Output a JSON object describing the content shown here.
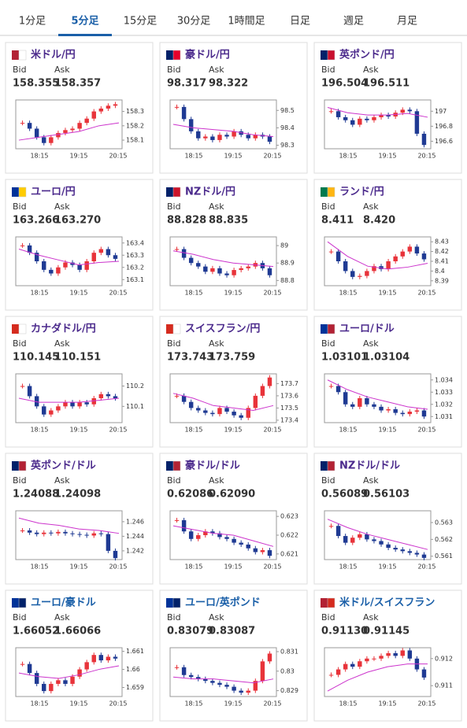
{
  "tabs": {
    "items": [
      "1分足",
      "5分足",
      "15分足",
      "30分足",
      "1時間足",
      "日足",
      "週足",
      "月足"
    ],
    "active": 1
  },
  "labels": {
    "bid": "Bid",
    "ask": "Ask"
  },
  "time_labels": [
    "18:15",
    "19:15",
    "20:15"
  ],
  "cards": [
    {
      "title": "米ドル/円",
      "bid": "158.355",
      "ask": "158.357",
      "chart": {
        "type": "candlestick",
        "ylim": [
          158.04,
          158.38
        ],
        "yticks": [
          158.1,
          158.2,
          158.3
        ],
        "values": [
          158.22,
          158.18,
          158.12,
          158.08,
          158.12,
          158.15,
          158.17,
          158.18,
          158.22,
          158.25,
          158.3,
          158.32,
          158.34,
          158.35
        ],
        "ma": [
          158.1,
          158.12,
          158.14,
          158.16,
          158.2,
          158.22
        ]
      }
    },
    {
      "title": "豪ドル/円",
      "bid": "98.317",
      "ask": "98.322",
      "chart": {
        "type": "candlestick",
        "ylim": [
          98.28,
          98.56
        ],
        "yticks": [
          98.3,
          98.4,
          98.5
        ],
        "values": [
          98.52,
          98.45,
          98.38,
          98.34,
          98.35,
          98.33,
          98.36,
          98.35,
          98.38,
          98.36,
          98.34,
          98.36,
          98.35,
          98.32
        ],
        "ma": [
          98.42,
          98.4,
          98.39,
          98.38,
          98.36,
          98.35
        ]
      }
    },
    {
      "title": "英ポンド/円",
      "bid": "196.504",
      "ask": "196.511",
      "chart": {
        "type": "candlestick",
        "ylim": [
          196.5,
          197.15
        ],
        "yticks": [
          196.6,
          196.8,
          197
        ],
        "values": [
          197.0,
          196.92,
          196.88,
          196.82,
          196.9,
          196.88,
          196.92,
          196.95,
          196.93,
          196.98,
          197.02,
          197.0,
          196.7,
          196.55
        ],
        "ma": [
          197.05,
          196.98,
          196.95,
          196.95,
          196.97,
          196.92
        ]
      }
    },
    {
      "title": "ユーロ/円",
      "bid": "163.266",
      "ask": "163.270",
      "chart": {
        "type": "candlestick",
        "ylim": [
          163.05,
          163.45
        ],
        "yticks": [
          163.1,
          163.2,
          163.3,
          163.4
        ],
        "values": [
          163.38,
          163.32,
          163.25,
          163.18,
          163.15,
          163.2,
          163.24,
          163.22,
          163.18,
          163.25,
          163.32,
          163.35,
          163.3,
          163.27
        ],
        "ma": [
          163.35,
          163.3,
          163.26,
          163.22,
          163.24,
          163.25
        ]
      }
    },
    {
      "title": "NZドル/円",
      "bid": "88.828",
      "ask": "88.835",
      "chart": {
        "type": "candlestick",
        "ylim": [
          88.77,
          89.05
        ],
        "yticks": [
          88.8,
          88.9,
          89
        ],
        "values": [
          88.98,
          88.93,
          88.9,
          88.88,
          88.85,
          88.87,
          88.84,
          88.83,
          88.86,
          88.87,
          88.88,
          88.9,
          88.87,
          88.83
        ],
        "ma": [
          88.97,
          88.95,
          88.92,
          88.9,
          88.89,
          88.88
        ]
      }
    },
    {
      "title": "ランド/円",
      "bid": "8.411",
      "ask": "8.420",
      "chart": {
        "type": "candlestick",
        "ylim": [
          8.385,
          8.435
        ],
        "yticks": [
          8.39,
          8.4,
          8.41,
          8.42,
          8.43
        ],
        "values": [
          8.42,
          8.41,
          8.4,
          8.394,
          8.395,
          8.4,
          8.405,
          8.402,
          8.41,
          8.415,
          8.42,
          8.425,
          8.418,
          8.412
        ],
        "ma": [
          8.43,
          8.415,
          8.405,
          8.402,
          8.404,
          8.408
        ]
      }
    },
    {
      "title": "カナダドル/円",
      "bid": "110.145",
      "ask": "110.151",
      "chart": {
        "type": "candlestick",
        "ylim": [
          110.02,
          110.26
        ],
        "yticks": [
          110.1,
          110.2
        ],
        "values": [
          110.2,
          110.15,
          110.1,
          110.06,
          110.08,
          110.1,
          110.12,
          110.1,
          110.12,
          110.11,
          110.14,
          110.16,
          110.15,
          110.14
        ],
        "ma": [
          110.14,
          110.12,
          110.12,
          110.12,
          110.13,
          110.14
        ]
      }
    },
    {
      "title": "スイスフラン/円",
      "bid": "173.743",
      "ask": "173.759",
      "chart": {
        "type": "candlestick",
        "ylim": [
          173.38,
          173.78
        ],
        "yticks": [
          173.4,
          173.5,
          173.6,
          173.7
        ],
        "values": [
          173.6,
          173.55,
          173.5,
          173.48,
          173.46,
          173.45,
          173.5,
          173.47,
          173.44,
          173.42,
          173.5,
          173.6,
          173.68,
          173.75
        ],
        "ma": [
          173.62,
          173.58,
          173.52,
          173.5,
          173.48,
          173.52
        ]
      }
    },
    {
      "title": "ユーロ/ドル",
      "bid": "1.03101",
      "ask": "1.03104",
      "chart": {
        "type": "candlestick",
        "ylim": [
          1.0305,
          1.0345
        ],
        "yticks": [
          1.031,
          1.032,
          1.033,
          1.034
        ],
        "values": [
          1.0335,
          1.033,
          1.032,
          1.0318,
          1.0325,
          1.032,
          1.0318,
          1.0315,
          1.0316,
          1.0313,
          1.0312,
          1.0314,
          1.0315,
          1.031
        ],
        "ma": [
          1.034,
          1.0332,
          1.0326,
          1.0322,
          1.0318,
          1.0316
        ]
      }
    },
    {
      "title": "英ポンド/ドル",
      "bid": "1.24088",
      "ask": "1.24098",
      "chart": {
        "type": "candlestick",
        "ylim": [
          1.2408,
          1.2475
        ],
        "yticks": [
          1.242,
          1.244,
          1.246
        ],
        "values": [
          1.2448,
          1.2445,
          1.2443,
          1.2445,
          1.2444,
          1.2446,
          1.2444,
          1.2443,
          1.2442,
          1.2441,
          1.2444,
          1.2443,
          1.242,
          1.241
        ],
        "ma": [
          1.2465,
          1.2458,
          1.2455,
          1.245,
          1.2448,
          1.2444
        ]
      }
    },
    {
      "title": "豪ドル/ドル",
      "bid": "0.62086",
      "ask": "0.62090",
      "chart": {
        "type": "candlestick",
        "ylim": [
          0.6207,
          0.6233
        ],
        "yticks": [
          0.621,
          0.622,
          0.623
        ],
        "values": [
          0.6228,
          0.6222,
          0.6218,
          0.622,
          0.6222,
          0.6221,
          0.6219,
          0.6218,
          0.6216,
          0.6215,
          0.6213,
          0.6211,
          0.6212,
          0.6209
        ],
        "ma": [
          0.6225,
          0.6223,
          0.6221,
          0.622,
          0.6217,
          0.6214
        ]
      }
    },
    {
      "title": "NZドル/ドル",
      "bid": "0.56089",
      "ask": "0.56103",
      "chart": {
        "type": "candlestick",
        "ylim": [
          0.5608,
          0.5637
        ],
        "yticks": [
          0.561,
          0.562,
          0.563
        ],
        "values": [
          0.5628,
          0.5622,
          0.5618,
          0.5621,
          0.5623,
          0.562,
          0.5619,
          0.5617,
          0.5615,
          0.5614,
          0.5613,
          0.5612,
          0.5611,
          0.5609
        ],
        "ma": [
          0.5632,
          0.5627,
          0.5623,
          0.562,
          0.5617,
          0.5614
        ]
      }
    },
    {
      "title": "ユーロ/豪ドル",
      "bid": "1.66052",
      "ask": "1.66066",
      "chart": {
        "type": "candlestick",
        "ylim": [
          1.6585,
          1.6612
        ],
        "yticks": [
          1.659,
          1.66,
          1.661
        ],
        "values": [
          1.6603,
          1.6598,
          1.6592,
          1.6588,
          1.6592,
          1.6594,
          1.6592,
          1.6596,
          1.66,
          1.6604,
          1.6608,
          1.6605,
          1.6607,
          1.6606
        ],
        "ma": [
          1.6598,
          1.6596,
          1.6595,
          1.6597,
          1.66,
          1.6602
        ]
      }
    },
    {
      "title": "ユーロ/英ポンド",
      "bid": "0.83079",
      "ask": "0.83087",
      "chart": {
        "type": "candlestick",
        "ylim": [
          0.8287,
          0.8312
        ],
        "yticks": [
          0.829,
          0.83,
          0.831
        ],
        "values": [
          0.8302,
          0.8298,
          0.8297,
          0.8296,
          0.8295,
          0.8294,
          0.8293,
          0.8292,
          0.829,
          0.8289,
          0.829,
          0.8295,
          0.8305,
          0.8309
        ],
        "ma": [
          0.8297,
          0.8296,
          0.8296,
          0.8295,
          0.8294,
          0.8296
        ]
      }
    },
    {
      "title": "米ドル/スイスフラン",
      "bid": "0.91130",
      "ask": "0.91145",
      "chart": {
        "type": "candlestick",
        "ylim": [
          0.9106,
          0.9124
        ],
        "yticks": [
          0.911,
          0.912
        ],
        "values": [
          0.9114,
          0.9116,
          0.9118,
          0.9117,
          0.9119,
          0.912,
          0.912,
          0.9121,
          0.9122,
          0.9121,
          0.9123,
          0.912,
          0.9116,
          0.9113
        ],
        "ma": [
          0.9108,
          0.9112,
          0.9115,
          0.9117,
          0.9118,
          0.9118
        ]
      }
    }
  ]
}
